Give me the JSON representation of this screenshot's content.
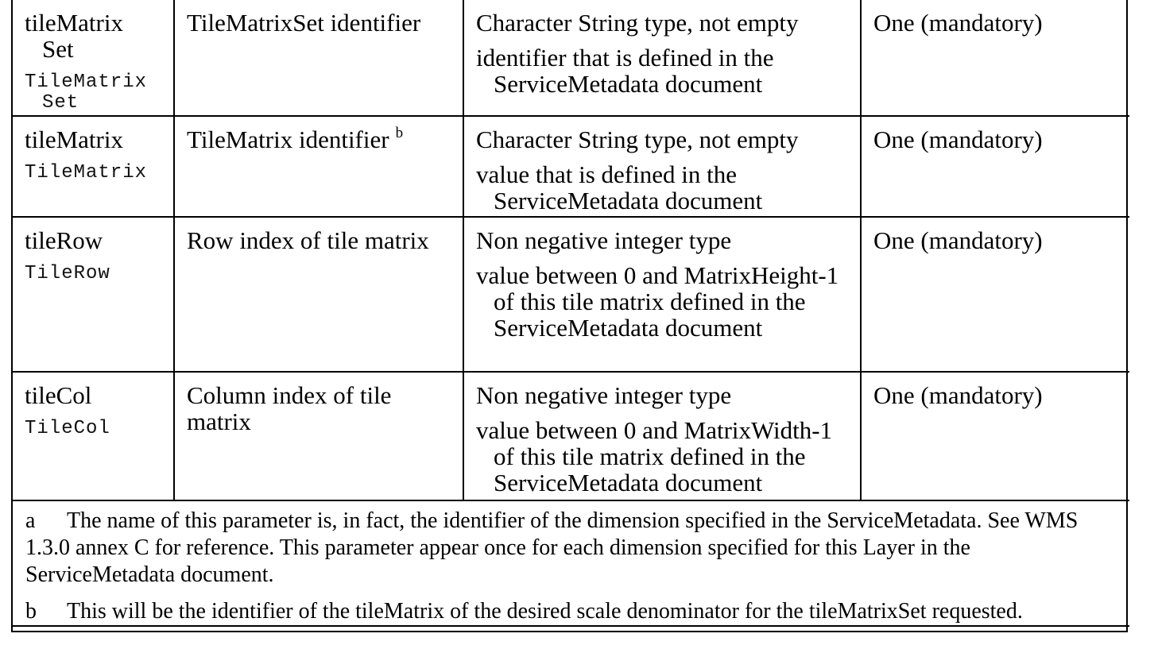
{
  "rows": [
    {
      "name_line1": "tileMatrix",
      "name_line2": "Set",
      "code_line1": "TileMatrix",
      "code_line2": "Set",
      "description": "TileMatrixSet identifier",
      "description_footnote": "",
      "type_line": "Character String type, not empty",
      "value_text": "identifier that is defined in the ServiceMetadata document",
      "multiplicity": "One (mandatory)"
    },
    {
      "name_line1": "tileMatrix",
      "code_line1": "TileMatrix",
      "description": "TileMatrix identifier",
      "description_footnote": "b",
      "type_line": "Character String type, not empty",
      "value_text": "value that is defined in the ServiceMetadata document",
      "multiplicity": "One (mandatory)"
    },
    {
      "name_line1": "tileRow",
      "code_line1": "TileRow",
      "description": "Row index of tile matrix",
      "description_footnote": "",
      "type_line": "Non negative integer type",
      "value_text": "value between 0 and MatrixHeight-1 of this tile matrix defined in the ServiceMetadata document",
      "multiplicity": "One (mandatory)"
    },
    {
      "name_line1": "tileCol",
      "code_line1": "TileCol",
      "description": "Column index of tile matrix",
      "description_footnote": "",
      "type_line": "Non negative integer type",
      "value_text": "value between 0 and MatrixWidth-1 of this tile matrix defined in the ServiceMetadata document",
      "multiplicity": "One (mandatory)"
    }
  ],
  "notes": [
    {
      "letter": "a",
      "text": "The name of this parameter is, in fact, the identifier of the dimension specified in the ServiceMetadata. See WMS 1.3.0 annex C for reference. This parameter appear once for each dimension specified for this Layer in the ServiceMetadata document."
    },
    {
      "letter": "b",
      "text": "This will be the identifier of the tileMatrix of the desired scale denominator for the tileMatrixSet requested."
    }
  ]
}
